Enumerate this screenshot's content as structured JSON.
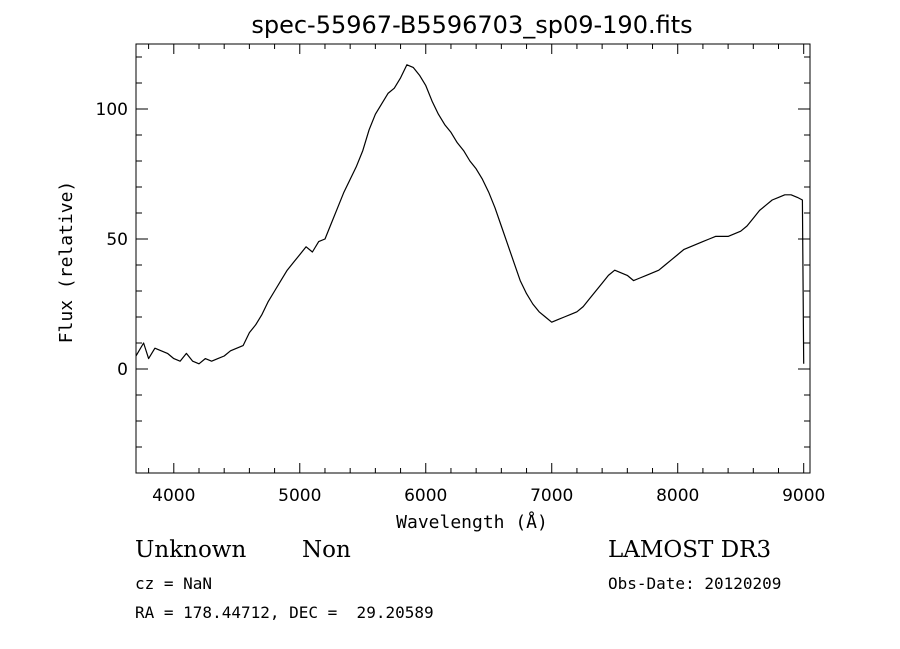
{
  "chart_data": {
    "type": "line",
    "title": "spec-55967-B5596703_sp09-190.fits",
    "xlabel": "Wavelength (Å)",
    "ylabel": "Flux (relative)",
    "xlim": [
      3700,
      9050
    ],
    "ylim": [
      -40,
      125
    ],
    "xticks": [
      4000,
      5000,
      6000,
      7000,
      8000,
      9000
    ],
    "yticks": [
      0,
      50,
      100
    ],
    "grid": false,
    "legend": "none",
    "line_color": "#000000",
    "series": [
      {
        "x": [
          3700,
          3760,
          3800,
          3850,
          3900,
          3950,
          4000,
          4050,
          4100,
          4150,
          4200,
          4250,
          4300,
          4350,
          4400,
          4450,
          4500,
          4550,
          4600,
          4650,
          4700,
          4750,
          4800,
          4850,
          4900,
          4950,
          5000,
          5050,
          5100,
          5150,
          5200,
          5250,
          5300,
          5350,
          5400,
          5450,
          5500,
          5550,
          5600,
          5650,
          5700,
          5750,
          5800,
          5850,
          5900,
          5950,
          6000,
          6050,
          6100,
          6150,
          6200,
          6250,
          6300,
          6350,
          6400,
          6450,
          6500,
          6550,
          6600,
          6650,
          6700,
          6750,
          6800,
          6850,
          6900,
          6950,
          7000,
          7050,
          7100,
          7150,
          7200,
          7250,
          7300,
          7350,
          7400,
          7450,
          7500,
          7550,
          7600,
          7650,
          7700,
          7750,
          7800,
          7850,
          7900,
          7950,
          8000,
          8050,
          8100,
          8150,
          8200,
          8250,
          8300,
          8350,
          8400,
          8450,
          8500,
          8550,
          8600,
          8650,
          8700,
          8750,
          8800,
          8850,
          8900,
          8950,
          8990,
          9000
        ],
        "y": [
          5,
          10,
          4,
          8,
          7,
          6,
          4,
          3,
          6,
          3,
          2,
          4,
          3,
          4,
          5,
          7,
          8,
          9,
          14,
          17,
          21,
          26,
          30,
          34,
          38,
          41,
          44,
          47,
          45,
          49,
          50,
          56,
          62,
          68,
          73,
          78,
          84,
          92,
          98,
          102,
          106,
          108,
          112,
          117,
          116,
          113,
          109,
          103,
          98,
          94,
          91,
          87,
          84,
          80,
          77,
          73,
          68,
          62,
          55,
          48,
          41,
          34,
          29,
          25,
          22,
          20,
          18,
          19,
          20,
          21,
          22,
          24,
          27,
          30,
          33,
          36,
          38,
          37,
          36,
          34,
          35,
          36,
          37,
          38,
          40,
          42,
          44,
          46,
          47,
          48,
          49,
          50,
          51,
          51,
          51,
          52,
          53,
          55,
          58,
          61,
          63,
          65,
          66,
          67,
          67,
          66,
          65,
          2
        ]
      }
    ]
  },
  "info": {
    "class": "Unknown",
    "subclass": "Non",
    "survey": "LAMOST DR3",
    "cz": "cz = NaN",
    "obs_date": "Obs-Date: 20120209",
    "coords": "RA = 178.44712, DEC =  29.20589"
  }
}
